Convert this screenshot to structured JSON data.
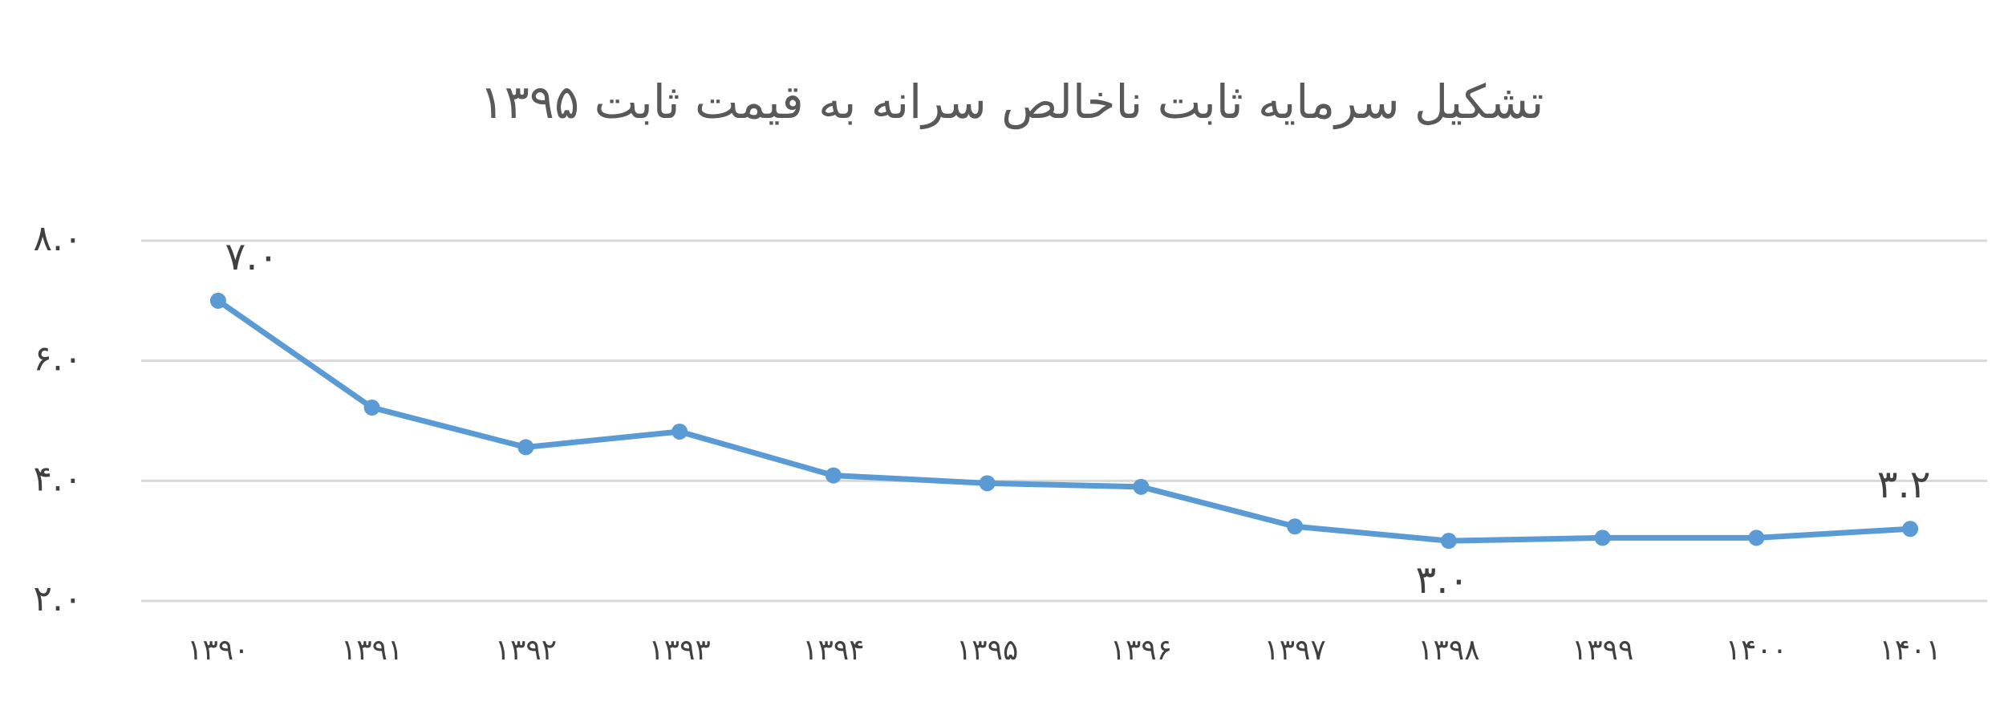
{
  "chart_data": {
    "type": "line",
    "title": "تشکیل سرمایه ثابت ناخالص سرانه به قیمت ثابت ۱۳۹۵",
    "categories": [
      "۱۳۹۰",
      "۱۳۹۱",
      "۱۳۹۲",
      "۱۳۹۳",
      "۱۳۹۴",
      "۱۳۹۵",
      "۱۳۹۶",
      "۱۳۹۷",
      "۱۳۹۸",
      "۱۳۹۹",
      "۱۴۰۰",
      "۱۴۰۱"
    ],
    "series": [
      {
        "name": "تشکیل سرمایه ثابت ناخالص سرانه",
        "color": "#5b9bd5",
        "values": [
          7.0,
          5.22,
          4.56,
          4.82,
          4.09,
          3.96,
          3.9,
          3.24,
          3.0,
          3.05,
          3.05,
          3.2
        ],
        "value_labels": [
          "۷.۰",
          null,
          null,
          null,
          null,
          null,
          null,
          null,
          "۳.۰",
          null,
          null,
          "۳.۲"
        ]
      }
    ],
    "ylim": [
      2,
      8
    ],
    "yticks": [
      {
        "value": 2,
        "label": "۲.۰"
      },
      {
        "value": 4,
        "label": "۴.۰"
      },
      {
        "value": 6,
        "label": "۶.۰"
      },
      {
        "value": 8,
        "label": "۸.۰"
      }
    ],
    "grid": true
  }
}
